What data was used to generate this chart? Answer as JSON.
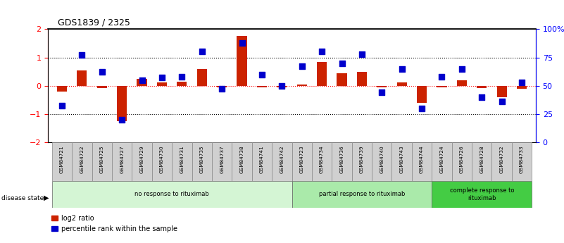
{
  "title": "GDS1839 / 2325",
  "samples": [
    "GSM84721",
    "GSM84722",
    "GSM84725",
    "GSM84727",
    "GSM84729",
    "GSM84730",
    "GSM84731",
    "GSM84735",
    "GSM84737",
    "GSM84738",
    "GSM84741",
    "GSM84742",
    "GSM84723",
    "GSM84734",
    "GSM84736",
    "GSM84739",
    "GSM84740",
    "GSM84743",
    "GSM84744",
    "GSM84724",
    "GSM84726",
    "GSM84728",
    "GSM84732",
    "GSM84733"
  ],
  "log2_ratio": [
    -0.22,
    0.55,
    -0.08,
    -1.25,
    0.25,
    0.12,
    0.15,
    0.6,
    -0.05,
    1.75,
    -0.05,
    -0.05,
    0.05,
    0.85,
    0.45,
    0.5,
    -0.05,
    0.12,
    -0.6,
    -0.05,
    0.2,
    -0.08,
    -0.4,
    -0.1
  ],
  "percentile_rank": [
    32,
    77,
    62,
    20,
    55,
    57,
    58,
    80,
    47,
    88,
    60,
    50,
    67,
    80,
    70,
    78,
    44,
    65,
    30,
    58,
    65,
    40,
    36,
    53
  ],
  "groups": [
    {
      "label": "no response to rituximab",
      "start": 0,
      "end": 12,
      "color": "#d4f5d4"
    },
    {
      "label": "partial response to rituximab",
      "start": 12,
      "end": 19,
      "color": "#aaeaaa"
    },
    {
      "label": "complete response to\nrituximab",
      "start": 19,
      "end": 24,
      "color": "#44cc44"
    }
  ],
  "bar_color_red": "#cc2200",
  "bar_color_blue": "#0000cc",
  "ylim_left": [
    -2,
    2
  ],
  "ylim_right": [
    0,
    100
  ],
  "yticks_left": [
    -2,
    -1,
    0,
    1,
    2
  ],
  "yticks_right": [
    0,
    25,
    50,
    75,
    100
  ],
  "ytick_labels_right": [
    "0",
    "25",
    "50",
    "75",
    "100%"
  ],
  "hlines_dotted": [
    1,
    -1
  ],
  "bg_color": "#ffffff",
  "label_box_color": "#d0d0d0",
  "bar_width": 0.5,
  "marker_size": 36
}
